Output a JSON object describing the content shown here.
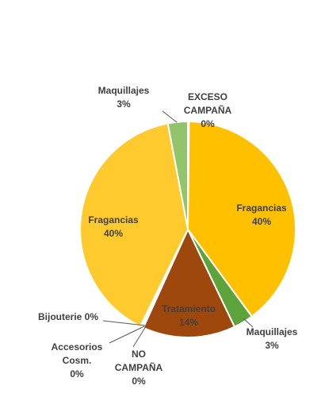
{
  "chart_data": {
    "type": "pie",
    "title": "",
    "slices": [
      {
        "label": "EXCESO CAMPAÑA",
        "value_text": "0%",
        "value": 0.0,
        "color": "#a8c65c"
      },
      {
        "label": "Fragancias",
        "value_text": "40%",
        "value": 40.0,
        "color": "#ffc000"
      },
      {
        "label": "Maquillajes",
        "value_text": "3%",
        "value": 3.0,
        "color": "#5ca33b"
      },
      {
        "label": "Tratamiento",
        "value_text": "14%",
        "value": 14.0,
        "color": "#9e480e"
      },
      {
        "label": "NO CAMPAÑA",
        "value_text": "0%",
        "value": 0.0,
        "color": "#c55a11"
      },
      {
        "label": "Accesorios Cosm.",
        "value_text": "0%",
        "value": 0.0,
        "color": "#843c0c"
      },
      {
        "label": "Bijouterie",
        "value_text": "0%",
        "value": 0.0,
        "color": "#f4b183"
      },
      {
        "label": "Fragancias",
        "value_text": "40%",
        "value": 40.0,
        "color": "#ffca2e"
      },
      {
        "label": "Maquillajes",
        "value_text": "3%",
        "value": 3.0,
        "color": "#92c56b"
      }
    ],
    "legend": "none"
  }
}
